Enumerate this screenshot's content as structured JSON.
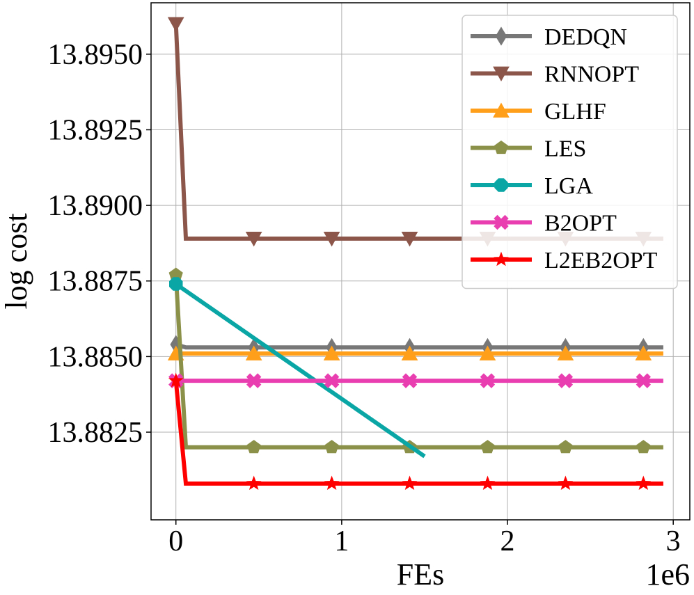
{
  "chart_data": {
    "type": "line",
    "xlabel": "FEs",
    "ylabel": "log cost",
    "x_offset_label": "1e6",
    "xlim": [
      -0.15,
      3.1
    ],
    "ylim": [
      13.8796,
      13.8967
    ],
    "xticks": [
      0,
      1,
      2,
      3
    ],
    "xtick_labels": [
      "0",
      "1",
      "2",
      "3"
    ],
    "yticks": [
      13.8825,
      13.885,
      13.8875,
      13.89,
      13.8925,
      13.895
    ],
    "ytick_labels": [
      "13.8825",
      "13.8850",
      "13.8875",
      "13.8900",
      "13.8925",
      "13.8950"
    ],
    "grid": true,
    "legend_position": "top-right",
    "series": [
      {
        "name": "DEDQN",
        "color": "#777777",
        "marker": "diamond",
        "x": [
          0,
          0.06,
          0.47,
          0.94,
          1.41,
          1.88,
          2.35,
          2.82,
          2.94
        ],
        "y": [
          13.8854,
          13.8853,
          13.8853,
          13.8853,
          13.8853,
          13.8853,
          13.8853,
          13.8853,
          13.8853
        ],
        "marker_x": [
          0,
          0.47,
          0.94,
          1.41,
          1.88,
          2.35,
          2.82
        ]
      },
      {
        "name": "RNNOPT",
        "color": "#8c564b",
        "marker": "triangle-down",
        "x": [
          0,
          0.06,
          0.47,
          0.94,
          1.41,
          1.88,
          2.35,
          2.82,
          2.94
        ],
        "y": [
          13.896,
          13.8889,
          13.8889,
          13.8889,
          13.8889,
          13.8889,
          13.8889,
          13.8889,
          13.8889
        ],
        "marker_x": [
          0,
          0.47,
          0.94,
          1.41,
          1.88,
          2.35,
          2.82
        ]
      },
      {
        "name": "GLHF",
        "color": "#ff9f1a",
        "marker": "triangle-up",
        "x": [
          0,
          0.47,
          0.94,
          1.41,
          1.88,
          2.35,
          2.82,
          2.94
        ],
        "y": [
          13.8851,
          13.8851,
          13.8851,
          13.8851,
          13.8851,
          13.8851,
          13.8851,
          13.8851
        ],
        "marker_x": [
          0,
          0.47,
          0.94,
          1.41,
          1.88,
          2.35,
          2.82
        ]
      },
      {
        "name": "LES",
        "color": "#8c914a",
        "marker": "pentagon",
        "x": [
          0,
          0.06,
          0.47,
          0.94,
          1.41,
          1.88,
          2.35,
          2.82,
          2.94
        ],
        "y": [
          13.8877,
          13.882,
          13.882,
          13.882,
          13.882,
          13.882,
          13.882,
          13.882,
          13.882
        ],
        "marker_x": [
          0,
          0.47,
          0.94,
          1.41,
          1.88,
          2.35,
          2.82
        ]
      },
      {
        "name": "LGA",
        "color": "#0aa6a6",
        "marker": "octagon",
        "x": [
          0,
          1.5
        ],
        "y": [
          13.8874,
          13.8817
        ],
        "marker_x": [
          0
        ]
      },
      {
        "name": "B2OPT",
        "color": "#e83eb0",
        "marker": "x",
        "x": [
          0,
          0.47,
          0.94,
          1.41,
          1.88,
          2.35,
          2.82,
          2.94
        ],
        "y": [
          13.8842,
          13.8842,
          13.8842,
          13.8842,
          13.8842,
          13.8842,
          13.8842,
          13.8842
        ],
        "marker_x": [
          0,
          0.47,
          0.94,
          1.41,
          1.88,
          2.35,
          2.82
        ]
      },
      {
        "name": "L2EB2OPT",
        "color": "#ff0000",
        "marker": "star",
        "x": [
          0,
          0.06,
          0.47,
          0.94,
          1.41,
          1.88,
          2.35,
          2.82,
          2.94
        ],
        "y": [
          13.8842,
          13.8808,
          13.8808,
          13.8808,
          13.8808,
          13.8808,
          13.8808,
          13.8808,
          13.8808
        ],
        "marker_x": [
          0,
          0.47,
          0.94,
          1.41,
          1.88,
          2.35,
          2.82
        ]
      }
    ]
  }
}
